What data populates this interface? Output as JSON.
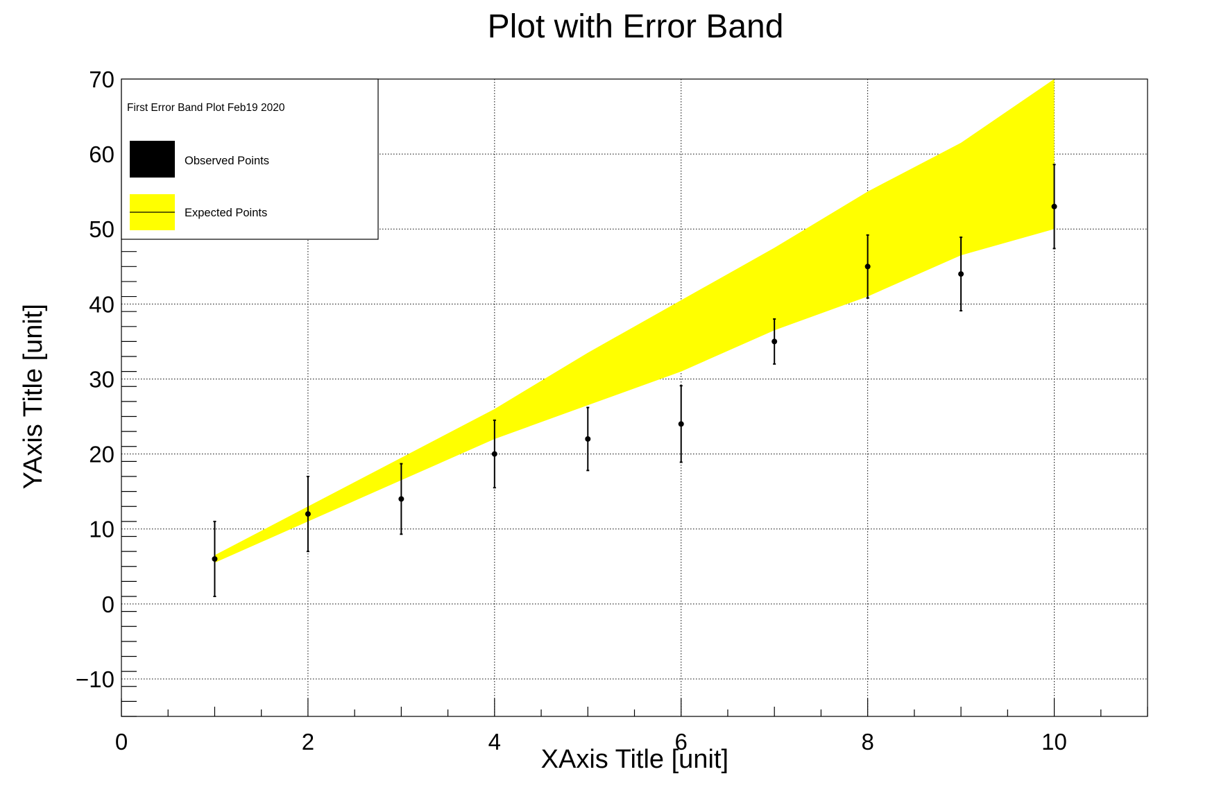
{
  "chart_data": {
    "type": "line",
    "title": "Plot with Error Band",
    "xlabel": "XAxis Title [unit]",
    "ylabel": "YAxis Title [unit]",
    "xlim": [
      0,
      11
    ],
    "ylim": [
      -15,
      70
    ],
    "x_ticks": [
      0,
      2,
      4,
      6,
      8,
      10
    ],
    "y_ticks": [
      -10,
      0,
      10,
      20,
      30,
      40,
      50,
      60,
      70
    ],
    "x_tick_labels": [
      "0",
      "2",
      "4",
      "6",
      "8",
      "10"
    ],
    "y_tick_labels": [
      "−10",
      "0",
      "10",
      "20",
      "30",
      "40",
      "50",
      "60",
      "70"
    ],
    "grid": true,
    "legend_position": "top-left",
    "legend_title": "First Error Band Plot Feb19 2020",
    "series": [
      {
        "name": "Observed Points",
        "kind": "points-with-errors",
        "x": [
          1,
          2,
          3,
          4,
          5,
          6,
          7,
          8,
          9,
          10
        ],
        "y": [
          6,
          12,
          14,
          20,
          22,
          24,
          35,
          45,
          44,
          53
        ],
        "y_err": [
          5,
          5,
          4.7,
          4.5,
          4.2,
          5.1,
          3,
          4.2,
          4.9,
          5.6
        ],
        "color": "#000000"
      },
      {
        "name": "Expected Points",
        "kind": "band",
        "x": [
          1,
          2,
          3,
          4,
          5,
          6,
          7,
          8,
          9,
          10
        ],
        "y_low": [
          5.5,
          11,
          16.5,
          22,
          26.5,
          31,
          36.5,
          41,
          46.5,
          50
        ],
        "y_high": [
          6.5,
          13,
          19.5,
          26,
          33.5,
          40.5,
          47.5,
          55,
          61.5,
          70
        ],
        "color": "#ffff00"
      }
    ]
  }
}
